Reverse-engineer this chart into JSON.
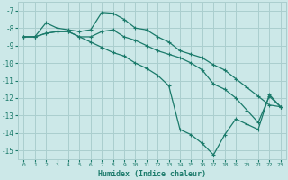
{
  "xlabel": "Humidex (Indice chaleur)",
  "bg_color": "#cce8e8",
  "grid_color": "#aacece",
  "line_color": "#1a7a6a",
  "xlim": [
    -0.5,
    23.5
  ],
  "ylim": [
    -15.5,
    -6.5
  ],
  "yticks": [
    -7,
    -8,
    -9,
    -10,
    -11,
    -12,
    -13,
    -14,
    -15
  ],
  "xticks": [
    0,
    1,
    2,
    3,
    4,
    5,
    6,
    7,
    8,
    9,
    10,
    11,
    12,
    13,
    14,
    15,
    16,
    17,
    18,
    19,
    20,
    21,
    22,
    23
  ],
  "line1": {
    "x": [
      0,
      1,
      2,
      3,
      4,
      5,
      6,
      7,
      8,
      9,
      10,
      11,
      12,
      13,
      14,
      15,
      16,
      17,
      18,
      19,
      20,
      21,
      22,
      23
    ],
    "y": [
      -8.5,
      -8.5,
      -7.7,
      -8.0,
      -8.1,
      -8.2,
      -8.1,
      -7.1,
      -7.15,
      -7.5,
      -8.0,
      -8.1,
      -8.5,
      -8.8,
      -9.3,
      -9.5,
      -9.7,
      -10.1,
      -10.4,
      -10.9,
      -11.4,
      -11.9,
      -12.4,
      -12.5
    ]
  },
  "line2": {
    "x": [
      0,
      1,
      2,
      3,
      4,
      5,
      6,
      7,
      8,
      9,
      10,
      11,
      12,
      13,
      14,
      15,
      16,
      17,
      18,
      19,
      20,
      21,
      22,
      23
    ],
    "y": [
      -8.5,
      -8.5,
      -8.3,
      -8.2,
      -8.2,
      -8.5,
      -8.5,
      -8.2,
      -8.1,
      -8.5,
      -8.7,
      -9.0,
      -9.3,
      -9.5,
      -9.7,
      -10.0,
      -10.4,
      -11.2,
      -11.5,
      -12.0,
      -12.7,
      -13.4,
      -11.9,
      -12.5
    ]
  },
  "line3": {
    "x": [
      0,
      1,
      2,
      3,
      4,
      5,
      6,
      7,
      8,
      9,
      10,
      11,
      12,
      13,
      14,
      15,
      16,
      17,
      18,
      19,
      20,
      21,
      22,
      23
    ],
    "y": [
      -8.5,
      -8.5,
      -8.3,
      -8.2,
      -8.2,
      -8.5,
      -8.8,
      -9.1,
      -9.4,
      -9.6,
      -10.0,
      -10.3,
      -10.7,
      -11.3,
      -13.8,
      -14.1,
      -14.6,
      -15.25,
      -14.1,
      -13.2,
      -13.5,
      -13.8,
      -11.8,
      -12.5
    ]
  },
  "lw": 0.9,
  "ms": 3.0,
  "mew": 0.8,
  "xlabel_fontsize": 6.0,
  "ytick_fontsize": 5.5,
  "xtick_fontsize": 4.5
}
